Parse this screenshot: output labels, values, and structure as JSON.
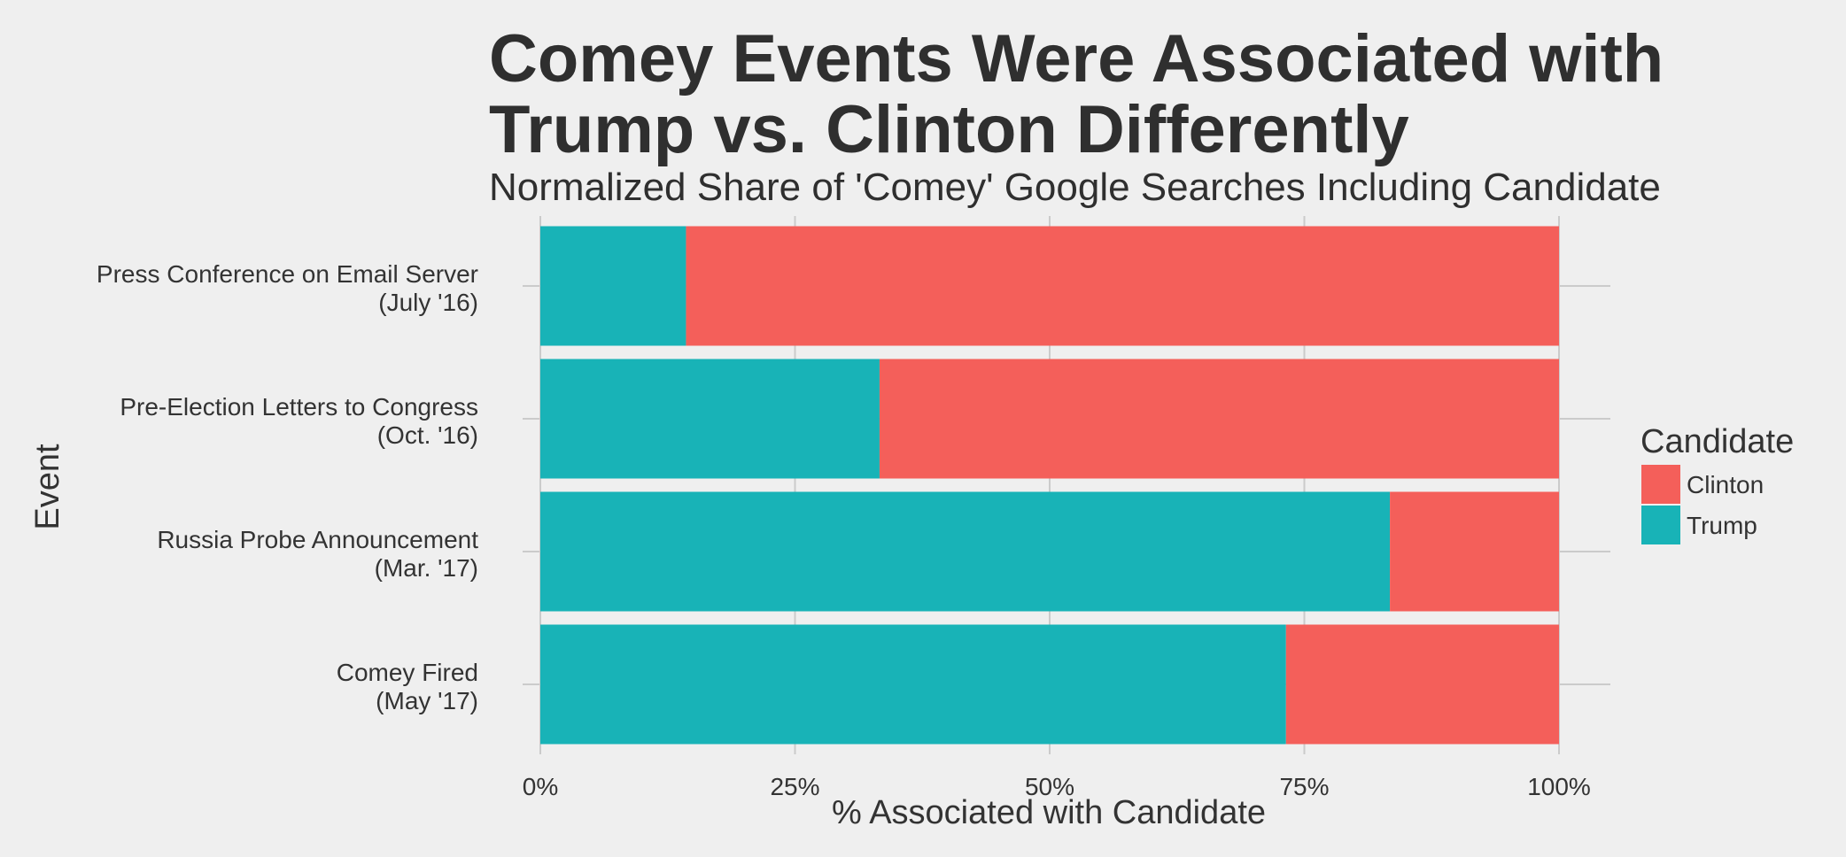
{
  "chart_data": {
    "type": "bar",
    "orientation": "horizontal",
    "stacked": "percent",
    "title_lines": [
      "Comey Events Were Associated with",
      "Trump vs. Clinton Differently"
    ],
    "subtitle": "Normalized Share of 'Comey' Google Searches Including Candidate",
    "xlabel": "% Associated with Candidate",
    "ylabel": "Event",
    "xlim": [
      0,
      100
    ],
    "x_ticks": [
      "0%",
      "25%",
      "50%",
      "75%",
      "100%"
    ],
    "grid": true,
    "legend_placement": "right",
    "legend_title": "Candidate",
    "categories": [
      [
        "Press Conference on Email Server",
        "(July '16)"
      ],
      [
        "Pre-Election Letters to Congress",
        "(Oct. '16)"
      ],
      [
        "Russia Probe Announcement",
        "(Mar. '17)"
      ],
      [
        "Comey Fired",
        "(May '17)"
      ]
    ],
    "series": [
      {
        "name": "Trump",
        "color": "#18b3b7",
        "values": [
          14.3,
          33.3,
          83.4,
          73.2
        ]
      },
      {
        "name": "Clinton",
        "color": "#f45f5a",
        "values": [
          85.7,
          66.7,
          16.6,
          26.8
        ]
      }
    ],
    "legend_order": [
      "Clinton",
      "Trump"
    ]
  }
}
